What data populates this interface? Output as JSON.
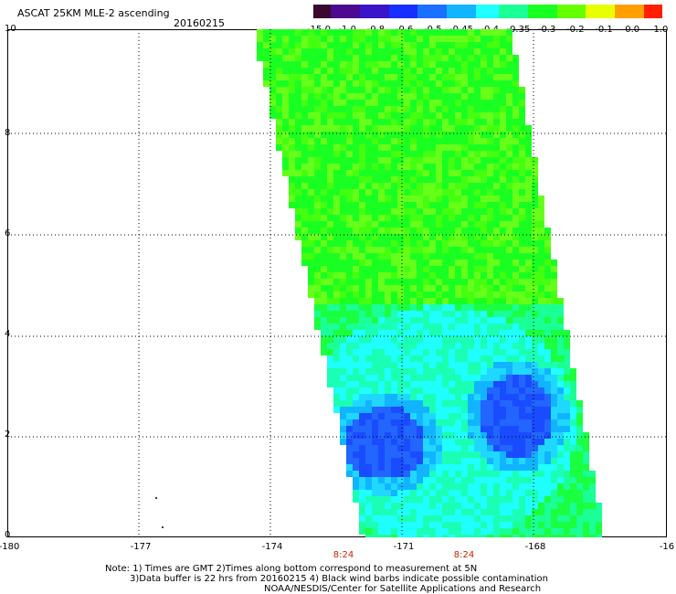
{
  "header": {
    "title": "ASCAT 25KM MLE-2 ascending",
    "date": "20160215"
  },
  "colorbar": {
    "labels": [
      "-15.0",
      "-1.0",
      "-0.8",
      "-0.6",
      "-0.5",
      "-0.45",
      "-0.4",
      "-0.35",
      "-0.3",
      "-0.2",
      "-0.1",
      "0.0",
      "1.0"
    ],
    "colors": [
      "#3a0a2e",
      "#4b0a90",
      "#3a14c8",
      "#1830ff",
      "#1a70ff",
      "#12b4ff",
      "#20ffff",
      "#1aff96",
      "#1aff22",
      "#66ff00",
      "#e8ff00",
      "#ffa000",
      "#ff1e00"
    ]
  },
  "axes": {
    "y_ticks": [
      "10",
      "8",
      "6",
      "4",
      "2",
      "0"
    ],
    "x_ticks": [
      "-180",
      "-177",
      "-174",
      "-171",
      "-168",
      "-16"
    ],
    "time_labels": [
      "8:24",
      "8:24"
    ]
  },
  "notes": {
    "line1": "Note: 1) Times are GMT 2)Times along bottom correspond to measurement at 5N",
    "line2": "3)Data buffer is 22 hrs from 20160215 4) Black wind barbs indicate possible contamination",
    "line3": "NOAA/NESDIS/Center for Satellite Applications and Research"
  }
}
